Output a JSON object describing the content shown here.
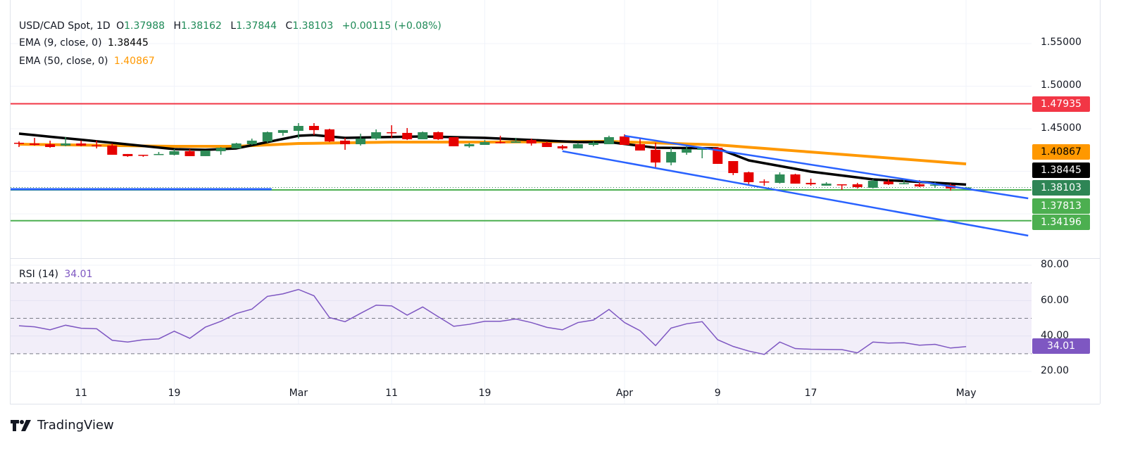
{
  "header": {
    "symbol": "USD/CAD Spot, 1D",
    "o_label": "O",
    "o": "1.37988",
    "h_label": "H",
    "h": "1.38162",
    "l_label": "L",
    "l": "1.37844",
    "c_label": "C",
    "c": "1.38103",
    "change": "+0.00115 (+0.08%)"
  },
  "indicators": [
    {
      "label": "EMA (9, close, 0)",
      "value": "1.38445",
      "color": "#000000"
    },
    {
      "label": "EMA (50, close, 0)",
      "value": "1.40867",
      "color": "#ff9800"
    }
  ],
  "rsi": {
    "label": "RSI (14)",
    "value": "34.01",
    "color": "#7e57c2",
    "tag": "34.01"
  },
  "price_axis": {
    "ticks": [
      "1.55000",
      "1.50000",
      "1.45000"
    ]
  },
  "rsi_axis": {
    "ticks": [
      "80.00",
      "60.00",
      "40.00",
      "20.00"
    ]
  },
  "time_axis": {
    "labels": [
      {
        "date": "Feb 11",
        "text": "11"
      },
      {
        "date": "Feb 19",
        "text": "19"
      },
      {
        "date": "Mar 3",
        "text": "Mar"
      },
      {
        "date": "Mar 11",
        "text": "11"
      },
      {
        "date": "Mar 19",
        "text": "19"
      },
      {
        "date": "Apr 1",
        "text": "Apr"
      },
      {
        "date": "Apr 9",
        "text": "9"
      },
      {
        "date": "Apr 17",
        "text": "17"
      },
      {
        "date": "May 1",
        "text": "May"
      }
    ]
  },
  "price_tags": [
    {
      "value": "1.47935",
      "color": "#f23645",
      "text_color": "#ffffff"
    },
    {
      "value": "1.40867",
      "color": "#ff9800",
      "text_color": "#000000"
    },
    {
      "value": "1.38445",
      "color": "#000000",
      "text_color": "#ffffff"
    },
    {
      "value": "1.38103",
      "color": "#2e8555",
      "text_color": "#ffffff"
    },
    {
      "value": "1.37813",
      "color": "#4caf50",
      "text_color": "#ffffff"
    },
    {
      "value": "1.34196",
      "color": "#4caf50",
      "text_color": "#ffffff"
    }
  ],
  "brand": "TradingView",
  "chart_data": {
    "type": "candlestick",
    "ylim": [
      1.3,
      1.57
    ],
    "colors": {
      "up": "#2e8b57",
      "down": "#e50000"
    },
    "bars_columns": [
      "date",
      "open",
      "high",
      "low",
      "close"
    ],
    "bars": [
      [
        "Feb 5",
        1.4335,
        1.4351,
        1.4285,
        1.4327
      ],
      [
        "Feb 6",
        1.4327,
        1.4393,
        1.4302,
        1.431
      ],
      [
        "Feb 7",
        1.4318,
        1.436,
        1.4277,
        1.4285
      ],
      [
        "Feb 10",
        1.4302,
        1.4401,
        1.4294,
        1.4327
      ],
      [
        "Feb 11",
        1.4327,
        1.436,
        1.4294,
        1.4302
      ],
      [
        "Feb 12",
        1.4306,
        1.436,
        1.4269,
        1.4302
      ],
      [
        "Feb 13",
        1.4302,
        1.4327,
        1.4194,
        1.4194
      ],
      [
        "Feb 14",
        1.4203,
        1.4203,
        1.417,
        1.4178
      ],
      [
        "Feb 17",
        1.4194,
        1.4194,
        1.417,
        1.4186
      ],
      [
        "Feb 18",
        1.4194,
        1.4227,
        1.4194,
        1.4203
      ],
      [
        "Feb 19",
        1.4194,
        1.426,
        1.4186,
        1.4236
      ],
      [
        "Feb 20",
        1.4236,
        1.426,
        1.4178,
        1.4178
      ],
      [
        "Feb 21",
        1.4178,
        1.4244,
        1.4178,
        1.4244
      ],
      [
        "Feb 24",
        1.4236,
        1.4285,
        1.4194,
        1.4277
      ],
      [
        "Feb 25",
        1.4269,
        1.4335,
        1.4269,
        1.4327
      ],
      [
        "Feb 26",
        1.4318,
        1.4384,
        1.431,
        1.436
      ],
      [
        "Feb 27",
        1.4351,
        1.4467,
        1.4335,
        1.4459
      ],
      [
        "Feb 28",
        1.4451,
        1.4484,
        1.4418,
        1.4484
      ],
      [
        "Mar 3",
        1.4475,
        1.4566,
        1.4384,
        1.4533
      ],
      [
        "Mar 4",
        1.4533,
        1.4566,
        1.4426,
        1.4484
      ],
      [
        "Mar 5",
        1.4492,
        1.45,
        1.4343,
        1.4351
      ],
      [
        "Mar 6",
        1.436,
        1.4393,
        1.4252,
        1.4318
      ],
      [
        "Mar 7",
        1.4318,
        1.4442,
        1.4302,
        1.4384
      ],
      [
        "Mar 10",
        1.4384,
        1.4492,
        1.4368,
        1.4459
      ],
      [
        "Mar 11",
        1.4459,
        1.4541,
        1.4393,
        1.4451
      ],
      [
        "Mar 12",
        1.4451,
        1.4508,
        1.4368,
        1.4376
      ],
      [
        "Mar 13",
        1.4376,
        1.4467,
        1.4376,
        1.4459
      ],
      [
        "Mar 14",
        1.4459,
        1.4467,
        1.4368,
        1.4376
      ],
      [
        "Mar 17",
        1.4401,
        1.4401,
        1.4294,
        1.4294
      ],
      [
        "Mar 18",
        1.4294,
        1.4335,
        1.4277,
        1.4318
      ],
      [
        "Mar 19",
        1.431,
        1.4368,
        1.431,
        1.4343
      ],
      [
        "Mar 20",
        1.4343,
        1.4418,
        1.4327,
        1.4335
      ],
      [
        "Mar 21",
        1.4335,
        1.4393,
        1.4335,
        1.4351
      ],
      [
        "Mar 24",
        1.4368,
        1.4384,
        1.4302,
        1.4327
      ],
      [
        "Mar 25",
        1.4335,
        1.4351,
        1.4285,
        1.4285
      ],
      [
        "Mar 26",
        1.4294,
        1.431,
        1.4252,
        1.4269
      ],
      [
        "Mar 27",
        1.4269,
        1.4335,
        1.4269,
        1.4318
      ],
      [
        "Mar 28",
        1.431,
        1.4351,
        1.4294,
        1.4335
      ],
      [
        "Mar 31",
        1.4318,
        1.4418,
        1.4318,
        1.4401
      ],
      [
        "Apr 1",
        1.4409,
        1.4434,
        1.431,
        1.431
      ],
      [
        "Apr 2",
        1.4318,
        1.4384,
        1.4244,
        1.4244
      ],
      [
        "Apr 3",
        1.4252,
        1.4335,
        1.4037,
        1.4103
      ],
      [
        "Apr 4",
        1.4103,
        1.4277,
        1.407,
        1.4227
      ],
      [
        "Apr 7",
        1.4219,
        1.431,
        1.4194,
        1.426
      ],
      [
        "Apr 8",
        1.4252,
        1.4285,
        1.4153,
        1.4277
      ],
      [
        "Apr 9",
        1.4277,
        1.4285,
        1.4087,
        1.4087
      ],
      [
        "Apr 10",
        1.412,
        1.412,
        1.3955,
        1.3979
      ],
      [
        "Apr 11",
        1.3988,
        1.3996,
        1.3839,
        1.3872
      ],
      [
        "Apr 14",
        1.388,
        1.3905,
        1.3831,
        1.3872
      ],
      [
        "Apr 15",
        1.3864,
        1.3988,
        1.3856,
        1.3963
      ],
      [
        "Apr 16",
        1.3963,
        1.3971,
        1.3855,
        1.3855
      ],
      [
        "Apr 17",
        1.3864,
        1.3913,
        1.3831,
        1.3847
      ],
      [
        "Apr 18",
        1.3831,
        1.3872,
        1.3831,
        1.3855
      ],
      [
        "Apr 21",
        1.3847,
        1.3847,
        1.3781,
        1.3839
      ],
      [
        "Apr 22",
        1.3847,
        1.3864,
        1.3798,
        1.3814
      ],
      [
        "Apr 23",
        1.3806,
        1.3905,
        1.3798,
        1.3888
      ],
      [
        "Apr 24",
        1.388,
        1.3905,
        1.3839,
        1.3847
      ],
      [
        "Apr 25",
        1.3853,
        1.3897,
        1.3847,
        1.3861
      ],
      [
        "Apr 28",
        1.3847,
        1.3897,
        1.3814,
        1.3822
      ],
      [
        "Apr 29",
        1.3833,
        1.3872,
        1.3806,
        1.3843
      ],
      [
        "Apr 30",
        1.3839,
        1.3855,
        1.3773,
        1.3798
      ],
      [
        "May 1",
        1.37988,
        1.38162,
        1.37844,
        1.38103
      ]
    ],
    "ema9": [
      [
        "Feb 5",
        1.4442
      ],
      [
        "Feb 13",
        1.4335
      ],
      [
        "Feb 19",
        1.426
      ],
      [
        "Feb 21",
        1.4252
      ],
      [
        "Feb 25",
        1.4269
      ],
      [
        "Mar 3",
        1.4417
      ],
      [
        "Mar 4",
        1.4426
      ],
      [
        "Mar 6",
        1.4393
      ],
      [
        "Mar 13",
        1.4409
      ],
      [
        "Mar 19",
        1.4393
      ],
      [
        "Mar 27",
        1.4343
      ],
      [
        "Mar 31",
        1.4343
      ],
      [
        "Apr 3",
        1.4277
      ],
      [
        "Apr 9",
        1.4269
      ],
      [
        "Apr 11",
        1.4128
      ],
      [
        "Apr 15",
        1.4062
      ],
      [
        "Apr 17",
        1.3996
      ],
      [
        "Apr 23",
        1.3905
      ],
      [
        "May 1",
        1.38445
      ]
    ],
    "ema50": [
      [
        "Feb 5",
        1.4318
      ],
      [
        "Feb 19",
        1.4293
      ],
      [
        "Feb 25",
        1.4293
      ],
      [
        "Mar 3",
        1.4326
      ],
      [
        "Mar 11",
        1.4343
      ],
      [
        "Mar 19",
        1.4343
      ],
      [
        "Mar 31",
        1.4351
      ],
      [
        "Apr 9",
        1.431
      ],
      [
        "May 1",
        1.40867
      ]
    ],
    "horizontal_levels": [
      {
        "price": 1.47935,
        "color": "#f23645"
      },
      {
        "price": 1.37813,
        "color": "#4caf50"
      },
      {
        "price": 1.34196,
        "color": "#4caf50"
      }
    ],
    "partial_level": {
      "price": 1.3789,
      "to": "Feb 27",
      "color": "#2962ff"
    },
    "last_price_line": {
      "price": 1.38103,
      "color": "#2e8555"
    },
    "trend_channel": [
      {
        "from": [
          "Apr 1",
          1.4417
        ],
        "to": [
          "May 7",
          1.3682
        ],
        "color": "#2962ff"
      },
      {
        "from": [
          "Mar 26",
          1.4236
        ],
        "to": [
          "May 7",
          1.3244
        ],
        "color": "#2962ff"
      }
    ],
    "rsi": {
      "ylim": [
        15,
        85
      ],
      "upper_band": 70,
      "middle": 50,
      "lower_band": 30,
      "values": [
        45.8,
        45.2,
        43.5,
        46.1,
        44.4,
        44.1,
        37.6,
        36.6,
        37.9,
        38.4,
        42.7,
        38.7,
        45.0,
        48.3,
        52.7,
        55.2,
        62.4,
        63.8,
        66.3,
        62.7,
        50.4,
        48.1,
        52.8,
        57.4,
        57.0,
        51.8,
        56.4,
        50.9,
        45.5,
        46.6,
        48.3,
        48.3,
        49.6,
        47.6,
        44.9,
        43.5,
        47.6,
        49.0,
        55.0,
        47.6,
        43.0,
        34.6,
        44.5,
        46.9,
        48.1,
        37.9,
        34.1,
        31.5,
        29.6,
        36.6,
        32.9,
        32.5,
        32.4,
        32.3,
        30.5,
        36.6,
        36.0,
        36.2,
        34.8,
        35.3,
        33.2,
        34.01
      ]
    }
  }
}
